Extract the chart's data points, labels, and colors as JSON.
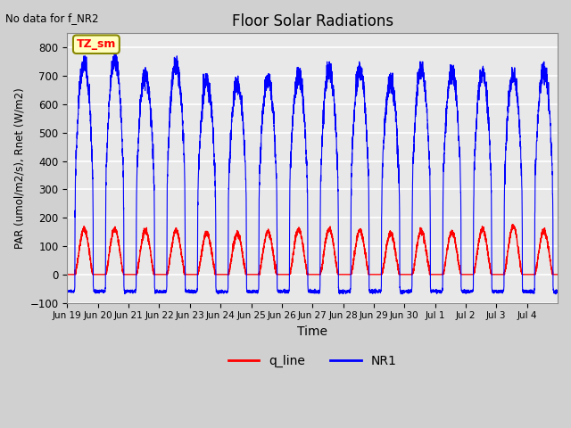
{
  "title": "Floor Solar Radiations",
  "xlabel": "Time",
  "ylabel": "PAR (umol/m2/s), Rnet (W/m2)",
  "ylim": [
    -100,
    850
  ],
  "yticks": [
    -100,
    0,
    100,
    200,
    300,
    400,
    500,
    600,
    700,
    800
  ],
  "note": "No data for f_NR2",
  "legend_label": "TZ_sm",
  "q_line_label": "q_line",
  "NR1_label": "NR1",
  "q_line_color": "red",
  "NR1_color": "blue",
  "n_days": 16,
  "xtick_labels": [
    "Jun 19",
    "Jun 20",
    "Jun 21",
    "Jun 22",
    "Jun 23",
    "Jun 24",
    "Jun 25",
    "Jun 26",
    "Jun 27",
    "Jun 28",
    "Jun 29",
    "Jun 30",
    "Jul 1",
    "Jul 2",
    "Jul 3",
    "Jul 4"
  ],
  "nr1_peaks": [
    740,
    750,
    700,
    740,
    680,
    670,
    690,
    700,
    720,
    720,
    680,
    720,
    710,
    710,
    700,
    720
  ],
  "q_peaks": [
    160,
    160,
    155,
    155,
    145,
    145,
    150,
    160,
    160,
    155,
    145,
    155,
    150,
    160,
    170,
    155
  ]
}
